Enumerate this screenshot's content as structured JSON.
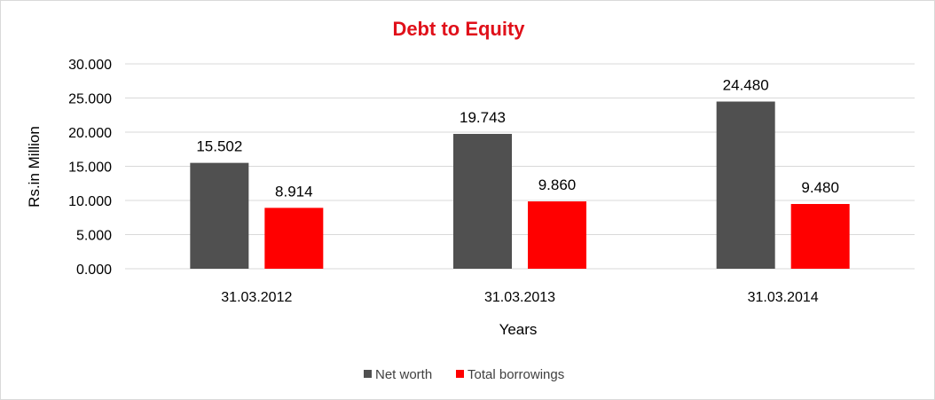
{
  "chart_data": {
    "type": "bar",
    "title": "Debt to Equity",
    "xlabel": "Years",
    "ylabel": "Rs.in Million",
    "categories": [
      "31.03.2012",
      "31.03.2013",
      "31.03.2014"
    ],
    "series": [
      {
        "name": "Net worth",
        "values": [
          15.502,
          19.743,
          24.48
        ],
        "labels": [
          "15.502",
          "19.743",
          "24.480"
        ],
        "color": "#505050"
      },
      {
        "name": "Total borrowings",
        "values": [
          8.914,
          9.86,
          9.48
        ],
        "labels": [
          "8.914",
          "9.860",
          "9.480"
        ],
        "color": "#ff0000"
      }
    ],
    "ylim": [
      0,
      30
    ],
    "yticks": [
      "0.000",
      "5.000",
      "10.000",
      "15.000",
      "20.000",
      "25.000",
      "30.000"
    ],
    "ytick_values": [
      0,
      5,
      10,
      15,
      20,
      25,
      30
    ],
    "grid": true,
    "legend_position": "bottom",
    "title_color": "#e0101a",
    "gridline_color": "#d9d9d9"
  }
}
